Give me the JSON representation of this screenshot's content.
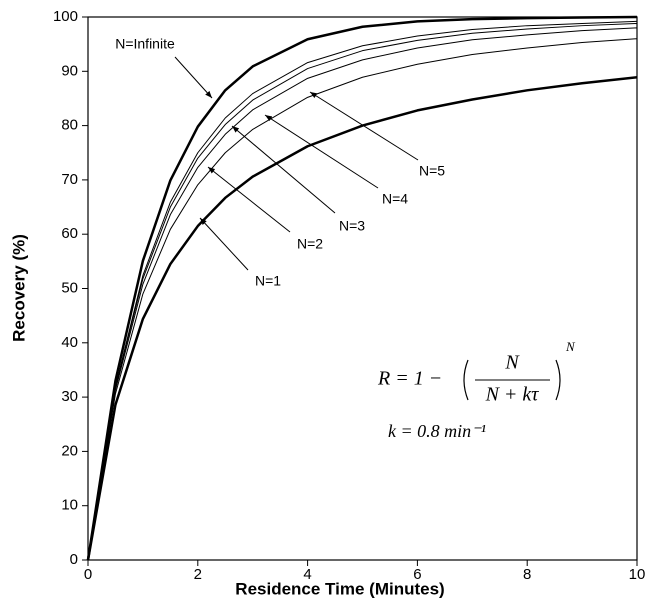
{
  "chart_data": {
    "type": "line",
    "x_label": "Residence Time (Minutes)",
    "y_label": "Recovery (%)",
    "x": [
      0,
      0.5,
      1,
      1.5,
      2,
      2.5,
      3,
      4,
      5,
      6,
      7,
      8,
      9,
      10
    ],
    "series": [
      {
        "name": "N=1",
        "color": "#000000",
        "width": 2.5,
        "values": [
          0,
          28.6,
          44.4,
          54.5,
          61.5,
          66.7,
          70.6,
          76.2,
          80.0,
          82.8,
          84.8,
          86.5,
          87.8,
          88.9
        ]
      },
      {
        "name": "N=2",
        "color": "#000000",
        "width": 1,
        "values": [
          0,
          30.6,
          49.0,
          60.9,
          69.1,
          75.0,
          79.3,
          85.2,
          88.9,
          91.3,
          93.1,
          94.3,
          95.3,
          96.0
        ]
      },
      {
        "name": "N=3",
        "color": "#000000",
        "width": 1,
        "values": [
          0,
          31.3,
          50.8,
          63.6,
          72.3,
          78.4,
          82.9,
          88.7,
          92.1,
          94.3,
          95.8,
          96.7,
          97.5,
          98.0
        ]
      },
      {
        "name": "N=4",
        "color": "#000000",
        "width": 1,
        "values": [
          0,
          31.7,
          51.8,
          65.0,
          74.0,
          80.2,
          84.7,
          90.5,
          93.8,
          95.7,
          97.0,
          97.8,
          98.4,
          98.8
        ]
      },
      {
        "name": "N=5",
        "color": "#000000",
        "width": 1,
        "values": [
          0,
          31.9,
          52.4,
          65.9,
          75.0,
          81.4,
          85.9,
          91.6,
          94.7,
          96.5,
          97.7,
          98.4,
          98.8,
          99.2
        ]
      },
      {
        "name": "N=Infinite",
        "color": "#000000",
        "width": 2.5,
        "values": [
          0,
          33.0,
          55.1,
          69.9,
          79.8,
          86.5,
          90.9,
          95.9,
          98.2,
          99.2,
          99.6,
          99.8,
          99.9,
          100.0
        ]
      }
    ],
    "xlim": [
      0,
      10
    ],
    "xticks": [
      0,
      2,
      4,
      6,
      8,
      10
    ],
    "ylim": [
      0,
      100
    ],
    "yticks": [
      0,
      10,
      20,
      30,
      40,
      50,
      60,
      70,
      80,
      90,
      100
    ],
    "grid": false,
    "equation": {
      "lhs": "R = 1 −",
      "numerator": "N",
      "denominator": "N + kτ",
      "exponent": "N"
    },
    "constant": "k = 0.8 min⁻¹"
  }
}
